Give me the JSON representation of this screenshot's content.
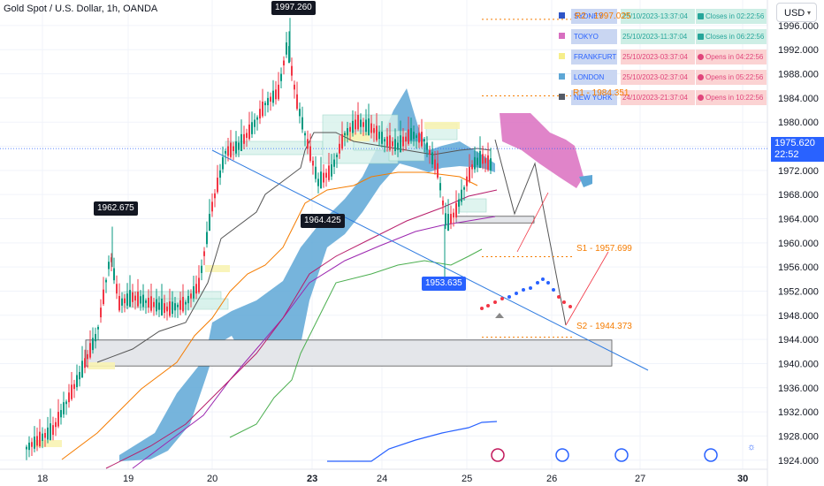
{
  "header": {
    "symbol_title": "Gold Spot / U.S. Dollar, 1h, OANDA",
    "currency_button": "USD"
  },
  "colors": {
    "bull": "#089981",
    "bear": "#f23645",
    "cloud": "#5ea7d6",
    "kumo_pink": "#da6fbf",
    "accent_blue": "#2962ff",
    "orange": "#f57c00",
    "green": "#4caf50",
    "purple": "#9c27b0"
  },
  "sessions": [
    {
      "name": "SYDNEY",
      "time": "25/10/2023-13:37:04",
      "status": "Closes in 02:22:56",
      "state": "open",
      "swatch": "#2f55c7",
      "icon": "book-icon"
    },
    {
      "name": "TOKYO",
      "time": "25/10/2023-11:37:04",
      "status": "Closes in 06:22:56",
      "state": "open",
      "swatch": "#d76fc0",
      "icon": "book-icon"
    },
    {
      "name": "FRANKFURT",
      "time": "25/10/2023-03:37:04",
      "status": "Opens in 04:22:56",
      "state": "closed",
      "swatch": "#f6ee8a",
      "icon": "dot-icon"
    },
    {
      "name": "LONDON",
      "time": "25/10/2023-02:37:04",
      "status": "Opens in 05:22:56",
      "state": "closed",
      "swatch": "#5ea7d6",
      "icon": "dot-icon"
    },
    {
      "name": "NEW YORK",
      "time": "24/10/2023-21:37:04",
      "status": "Opens in 10:22:56",
      "state": "closed",
      "swatch": "#555b66",
      "icon": "dot-icon"
    }
  ],
  "levels": [
    {
      "name": "R2",
      "label": "R2 - 1997.025",
      "price": 1997.025
    },
    {
      "name": "R1",
      "label": "R1 - 1984.351",
      "price": 1984.351
    },
    {
      "name": "S1",
      "label": "S1 - 1957.699",
      "price": 1957.699
    },
    {
      "name": "S2",
      "label": "S2 - 1944.373",
      "price": 1944.373
    }
  ],
  "callouts": {
    "high": "1997.260",
    "left_high": "1962.675",
    "mid_low": "1964.425",
    "low": "1953.635"
  },
  "current_price": {
    "value": "1975.620",
    "countdown": "22:52"
  },
  "chart_data": {
    "type": "candlestick",
    "title": "Gold Spot / U.S. Dollar, 1h, OANDA",
    "x_ticks": [
      "18",
      "19",
      "20",
      "23",
      "24",
      "25",
      "26",
      "27",
      "30"
    ],
    "y_ticks": [
      1924,
      1928,
      1932,
      1936,
      1940,
      1944,
      1948,
      1952,
      1956,
      1960,
      1964,
      1968,
      1972,
      1976,
      1980,
      1984,
      1988,
      1992,
      1996
    ],
    "ylim": [
      1922.5,
      1999.5
    ],
    "labeled_prices": {
      "swing_high": 1997.26,
      "swing_left": 1962.675,
      "swing_mid": 1964.425,
      "swing_low": 1953.635,
      "last": 1975.62
    },
    "zones": [
      {
        "name": "demand-zone",
        "low": 1939.6,
        "high": 1943.9
      },
      {
        "name": "target-box",
        "low": 1963.3,
        "high": 1964.4
      }
    ],
    "grid": true
  }
}
